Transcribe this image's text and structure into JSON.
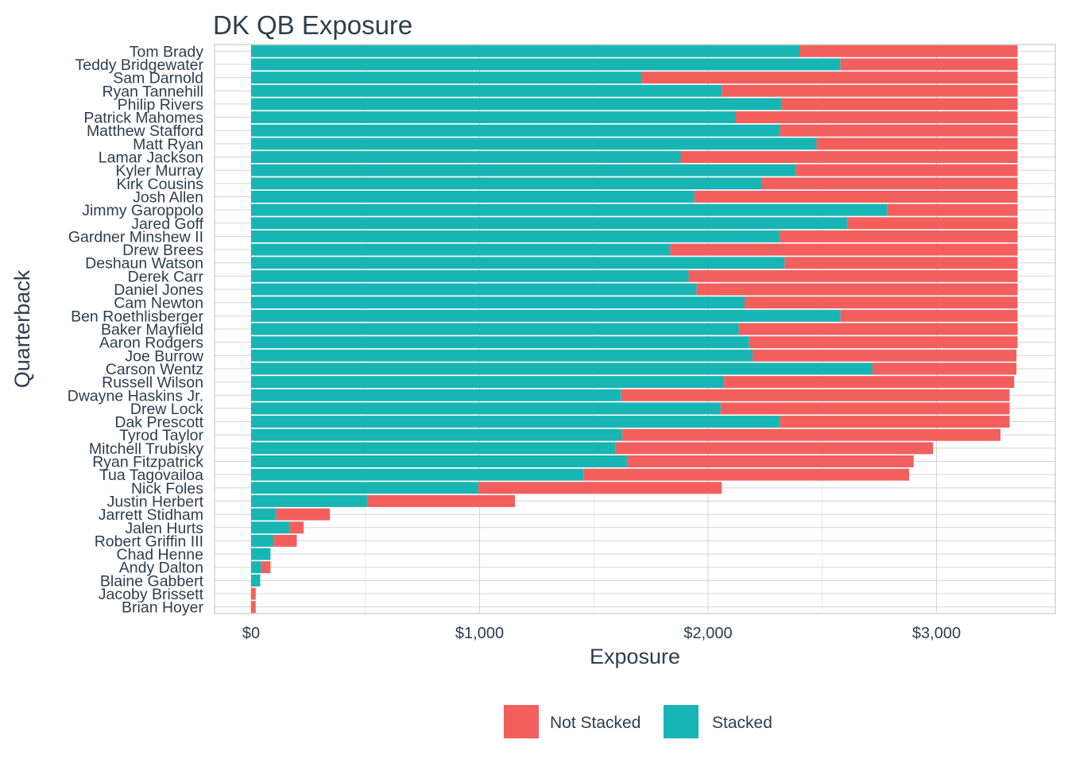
{
  "chart_data": {
    "type": "bar",
    "orientation": "horizontal",
    "stacked": true,
    "title": "DK QB Exposure",
    "xlabel": "Exposure",
    "ylabel": "Quarterback",
    "xlim": [
      -160,
      3520
    ],
    "x_ticks": [
      0,
      1000,
      2000,
      3000
    ],
    "x_tick_labels": [
      "$0",
      "$1,000",
      "$2,000",
      "$3,000"
    ],
    "grid": true,
    "legend_position": "bottom",
    "colors": {
      "stacked": "#19b5b5",
      "not_stacked": "#f35f5c"
    },
    "legend": [
      {
        "key": "not_stacked",
        "label": "Not Stacked"
      },
      {
        "key": "stacked",
        "label": "Stacked"
      }
    ],
    "categories": [
      "Tom Brady",
      "Teddy Bridgewater",
      "Sam Darnold",
      "Ryan Tannehill",
      "Philip Rivers",
      "Patrick Mahomes",
      "Matthew Stafford",
      "Matt Ryan",
      "Lamar Jackson",
      "Kyler Murray",
      "Kirk Cousins",
      "Josh Allen",
      "Jimmy Garoppolo",
      "Jared Goff",
      "Gardner Minshew II",
      "Drew Brees",
      "Deshaun Watson",
      "Derek Carr",
      "Daniel Jones",
      "Cam Newton",
      "Ben Roethlisberger",
      "Baker Mayfield",
      "Aaron Rodgers",
      "Joe Burrow",
      "Carson Wentz",
      "Russell Wilson",
      "Dwayne Haskins Jr.",
      "Drew Lock",
      "Dak Prescott",
      "Tyrod Taylor",
      "Mitchell Trubisky",
      "Ryan Fitzpatrick",
      "Tua Tagovailoa",
      "Nick Foles",
      "Justin Herbert",
      "Jarrett Stidham",
      "Jalen Hurts",
      "Robert Griffin III",
      "Chad Henne",
      "Andy Dalton",
      "Blaine Gabbert",
      "Jacoby Brissett",
      "Brian Hoyer"
    ],
    "series": [
      {
        "key": "stacked",
        "name": "Stacked",
        "values": [
          2400,
          2580,
          1710,
          2060,
          2320,
          2120,
          2315,
          2475,
          1880,
          2385,
          2235,
          1940,
          2785,
          2610,
          2315,
          1835,
          2335,
          1915,
          1950,
          2160,
          2580,
          2135,
          2180,
          2195,
          2720,
          2070,
          1620,
          2055,
          2315,
          1625,
          1595,
          1645,
          1455,
          995,
          510,
          110,
          170,
          100,
          85,
          45,
          40,
          0,
          0
        ]
      },
      {
        "key": "not_stacked",
        "name": "Not Stacked",
        "values": [
          955,
          775,
          1645,
          1295,
          1035,
          1235,
          1040,
          880,
          1475,
          970,
          1120,
          1415,
          570,
          745,
          1040,
          1520,
          1020,
          1440,
          1405,
          1195,
          775,
          1220,
          1175,
          1155,
          630,
          1270,
          1700,
          1265,
          1005,
          1655,
          1390,
          1255,
          1425,
          1065,
          645,
          235,
          60,
          100,
          0,
          40,
          0,
          20,
          20
        ]
      }
    ]
  }
}
